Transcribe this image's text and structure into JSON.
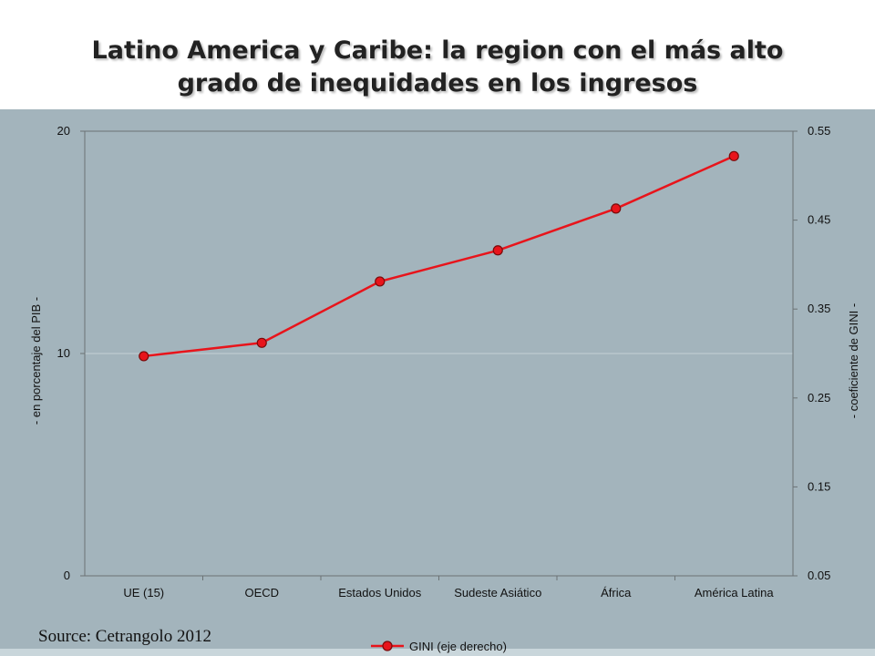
{
  "title_line1": "Latino America y Caribe: la region con el más alto",
  "title_line2": "grado de inequidades en los ingresos",
  "source": "Source: Cetrangolo 2012",
  "chart_data": {
    "type": "line",
    "categories": [
      "UE (15)",
      "OECD",
      "Estados Unidos",
      "Sudeste Asiático",
      "África",
      "América Latina"
    ],
    "series": [
      {
        "name": "GINI (eje derecho)",
        "axis": "right",
        "values": [
          0.297,
          0.312,
          0.381,
          0.416,
          0.463,
          0.522
        ]
      }
    ],
    "y_left": {
      "label": "- en porcentaje del PIB -",
      "ticks": [
        "0",
        "10",
        "20"
      ],
      "range": [
        0,
        20
      ]
    },
    "y_right": {
      "label": "- coeficiente de GINI -",
      "ticks": [
        "0.05",
        "0.15",
        "0.25",
        "0.35",
        "0.45",
        "0.55"
      ],
      "range": [
        0.05,
        0.55
      ]
    },
    "grid": "one horizontal gridline at 10",
    "legend": "bottom-center",
    "colors": {
      "line": "#e8141b",
      "marker_fill": "#e8141b",
      "marker_stroke": "#7a0a0a",
      "background": "#a3b4bc"
    }
  }
}
